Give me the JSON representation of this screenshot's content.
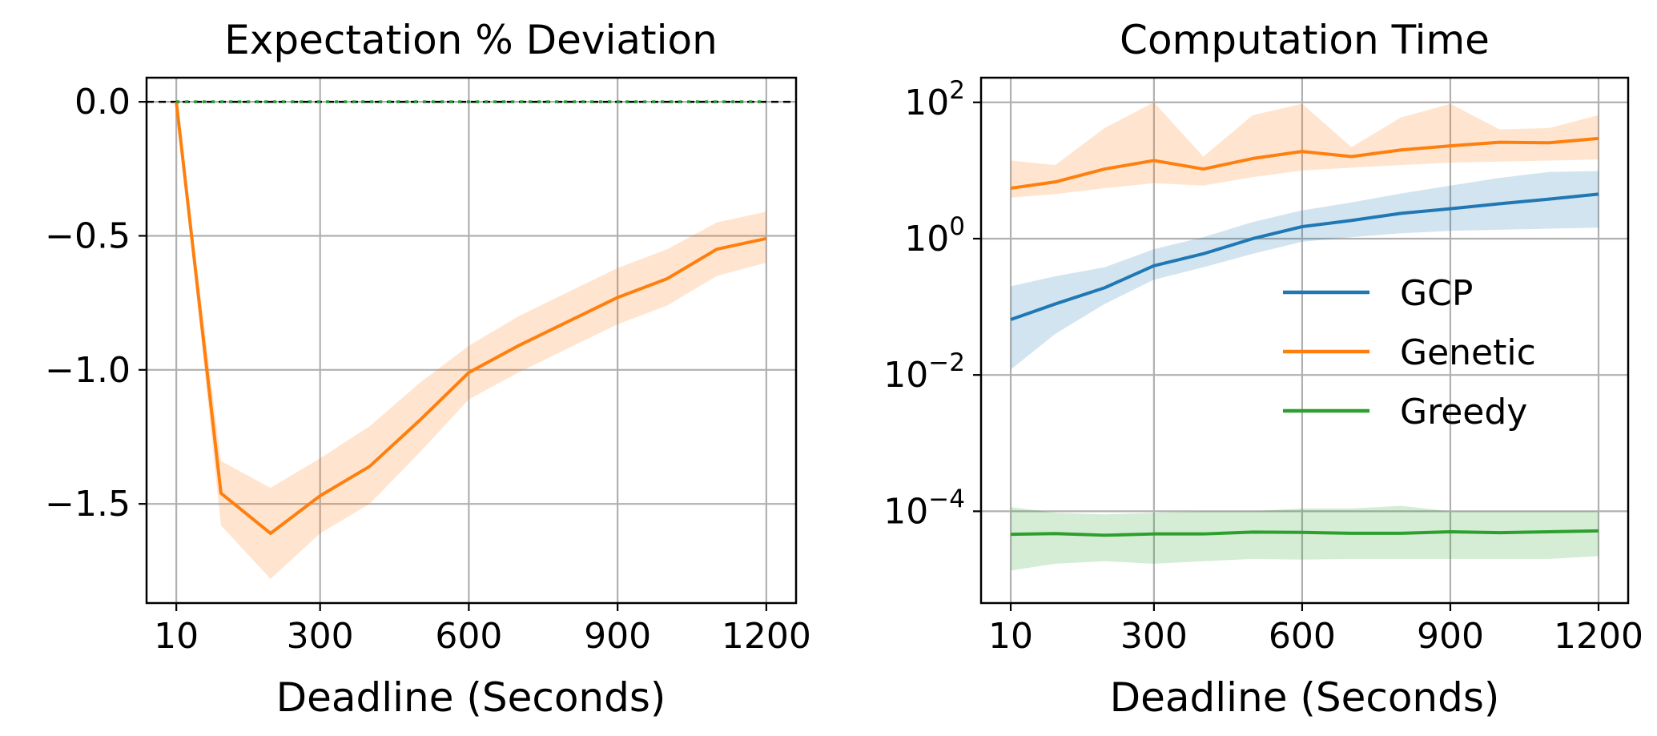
{
  "chart_data": [
    {
      "type": "line",
      "title": "Expectation % Deviation",
      "xlabel": "Deadline (Seconds)",
      "ylabel": "",
      "x": [
        10,
        100,
        200,
        300,
        400,
        500,
        600,
        700,
        800,
        900,
        1000,
        1100,
        1200
      ],
      "xticks": [
        10,
        300,
        600,
        900,
        1200
      ],
      "xtick_labels": [
        "10",
        "300",
        "600",
        "900",
        "1200"
      ],
      "xlim": [
        -50,
        1260
      ],
      "yticks": [
        0.0,
        -0.5,
        -1.0,
        -1.5
      ],
      "ytick_labels": [
        "0.0",
        "−0.5",
        "−1.0",
        "−1.5"
      ],
      "ylim": [
        -1.87,
        0.09
      ],
      "grid": true,
      "reference_line": {
        "y": 0.0,
        "style": "dashed",
        "color": "#000000"
      },
      "series": [
        {
          "color": "#1f77b4",
          "style": "dotted",
          "values": [
            0,
            0,
            0,
            0,
            0,
            0,
            0,
            0,
            0,
            0,
            0,
            0,
            0
          ],
          "band_low": [
            0,
            0,
            0,
            0,
            0,
            0,
            0,
            0,
            0,
            0,
            0,
            0,
            0
          ],
          "band_high": [
            0,
            0,
            0,
            0,
            0,
            0,
            0,
            0,
            0,
            0,
            0,
            0,
            0
          ]
        },
        {
          "color": "#ff7f0e",
          "style": "solid",
          "values": [
            0.0,
            -1.46,
            -1.61,
            -1.47,
            -1.36,
            -1.19,
            -1.01,
            -0.91,
            -0.82,
            -0.73,
            -0.66,
            -0.55,
            -0.51
          ],
          "band_low": [
            0.0,
            -1.58,
            -1.78,
            -1.61,
            -1.5,
            -1.31,
            -1.11,
            -1.01,
            -0.92,
            -0.83,
            -0.76,
            -0.65,
            -0.6
          ],
          "band_high": [
            0.0,
            -1.34,
            -1.44,
            -1.33,
            -1.21,
            -1.05,
            -0.91,
            -0.8,
            -0.71,
            -0.62,
            -0.55,
            -0.45,
            -0.41
          ]
        },
        {
          "color": "#2ca02c",
          "style": "dotted",
          "values": [
            0,
            0,
            0,
            0,
            0,
            0,
            0,
            0,
            0,
            0,
            0,
            0,
            0
          ],
          "band_low": [
            0,
            0,
            0,
            0,
            0,
            0,
            0,
            0,
            0,
            0,
            0,
            0,
            0
          ],
          "band_high": [
            0,
            0,
            0,
            0,
            0,
            0,
            0,
            0,
            0,
            0,
            0,
            0,
            0
          ]
        }
      ]
    },
    {
      "type": "line",
      "title": "Computation Time",
      "xlabel": "Deadline (Seconds)",
      "ylabel": "",
      "yscale": "log",
      "x": [
        10,
        100,
        200,
        300,
        400,
        500,
        600,
        700,
        800,
        900,
        1000,
        1100,
        1200
      ],
      "xticks": [
        10,
        300,
        600,
        900,
        1200
      ],
      "xtick_labels": [
        "10",
        "300",
        "600",
        "900",
        "1200"
      ],
      "xlim": [
        -50,
        1260
      ],
      "yticks": [
        100,
        1,
        0.01,
        0.0001
      ],
      "ytick_labels": [
        {
          "base": "10",
          "exp": "2"
        },
        {
          "base": "10",
          "exp": "0"
        },
        {
          "base": "10",
          "exp": "−2"
        },
        {
          "base": "10",
          "exp": "−4"
        }
      ],
      "ylim": [
        4.5e-06,
        230
      ],
      "grid": true,
      "legend": {
        "position": "center-right",
        "frame": false
      },
      "series": [
        {
          "name": "GCP",
          "color": "#1f77b4",
          "values": [
            0.065,
            0.11,
            0.19,
            0.4,
            0.6,
            1.0,
            1.5,
            1.85,
            2.35,
            2.75,
            3.25,
            3.8,
            4.5
          ],
          "band_low": [
            0.012,
            0.04,
            0.11,
            0.25,
            0.38,
            0.6,
            0.9,
            1.05,
            1.2,
            1.3,
            1.35,
            1.4,
            1.45
          ],
          "band_high": [
            0.2,
            0.28,
            0.38,
            0.7,
            1.05,
            1.75,
            2.6,
            3.4,
            4.6,
            6.0,
            7.8,
            9.5,
            9.8
          ]
        },
        {
          "name": "Genetic",
          "color": "#ff7f0e",
          "values": [
            5.5,
            6.8,
            10.5,
            14.0,
            10.5,
            15.0,
            19.0,
            16.0,
            20.0,
            23.0,
            26.0,
            25.5,
            29.5
          ],
          "band_low": [
            4.0,
            4.5,
            5.5,
            6.5,
            6.0,
            8.0,
            10.0,
            11.0,
            12.0,
            13.0,
            13.5,
            14.0,
            14.5
          ],
          "band_high": [
            14.0,
            12.0,
            42.0,
            100.0,
            16.0,
            65.0,
            95.0,
            22.0,
            60.0,
            95.0,
            40.0,
            42.0,
            65.0
          ]
        },
        {
          "name": "Greedy",
          "color": "#2ca02c",
          "values": [
            4.6e-05,
            4.7e-05,
            4.45e-05,
            4.65e-05,
            4.65e-05,
            4.95e-05,
            4.9e-05,
            4.75e-05,
            4.75e-05,
            5e-05,
            4.85e-05,
            5e-05,
            5.15e-05
          ],
          "band_low": [
            1.35e-05,
            1.7e-05,
            1.85e-05,
            1.7e-05,
            1.85e-05,
            2e-05,
            1.95e-05,
            2e-05,
            2e-05,
            2e-05,
            2e-05,
            2e-05,
            2.2e-05
          ],
          "band_high": [
            0.000115,
            9.5e-05,
            9e-05,
            9.5e-05,
            0.0001,
            0.0001,
            0.00011,
            0.00011,
            0.00012,
            0.0001,
            0.0001,
            0.0001,
            0.0001
          ]
        }
      ]
    }
  ]
}
